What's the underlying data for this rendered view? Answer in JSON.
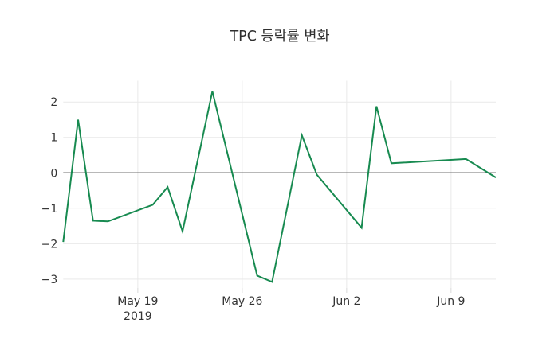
{
  "chart_data": {
    "type": "line",
    "title": "TPC 등락률 변화",
    "xlabel": "",
    "ylabel": "",
    "grid": true,
    "legend": "none",
    "zeroline": true,
    "xlim": [
      "2019-05-14",
      "2019-06-12"
    ],
    "ylim": [
      -3.25,
      2.6
    ],
    "series": [
      {
        "name": "TPC",
        "color": "#178a50",
        "x": [
          "2019-05-14",
          "2019-05-15",
          "2019-05-16",
          "2019-05-17",
          "2019-05-20",
          "2019-05-21",
          "2019-05-22",
          "2019-05-24",
          "2019-05-27",
          "2019-05-28",
          "2019-05-30",
          "2019-05-31",
          "2019-06-03",
          "2019-06-04",
          "2019-06-05",
          "2019-06-10",
          "2019-06-12"
        ],
        "y": [
          -1.95,
          1.5,
          -1.35,
          -1.37,
          -0.9,
          -0.4,
          -1.65,
          2.3,
          -2.9,
          -3.08,
          1.06,
          -0.05,
          -1.55,
          1.88,
          0.27,
          0.39,
          -0.13
        ]
      }
    ],
    "xticks": [
      {
        "date": "2019-05-19",
        "label": "May 19",
        "sublabel": "2019"
      },
      {
        "date": "2019-05-26",
        "label": "May 26",
        "sublabel": ""
      },
      {
        "date": "2019-06-02",
        "label": "Jun 2",
        "sublabel": ""
      },
      {
        "date": "2019-06-09",
        "label": "Jun 9",
        "sublabel": ""
      }
    ],
    "yticks": [
      {
        "value": 2,
        "label": "2"
      },
      {
        "value": 1,
        "label": "1"
      },
      {
        "value": 0,
        "label": "0"
      },
      {
        "value": -1,
        "label": "−1"
      },
      {
        "value": -2,
        "label": "−2"
      },
      {
        "value": -3,
        "label": "−3"
      }
    ],
    "colors": {
      "line": "#178a50",
      "grid": "#e9e9e9",
      "tick_mark": "#d9d9d9",
      "zero_line": "#444444",
      "text": "#333333",
      "background": "#ffffff"
    }
  }
}
